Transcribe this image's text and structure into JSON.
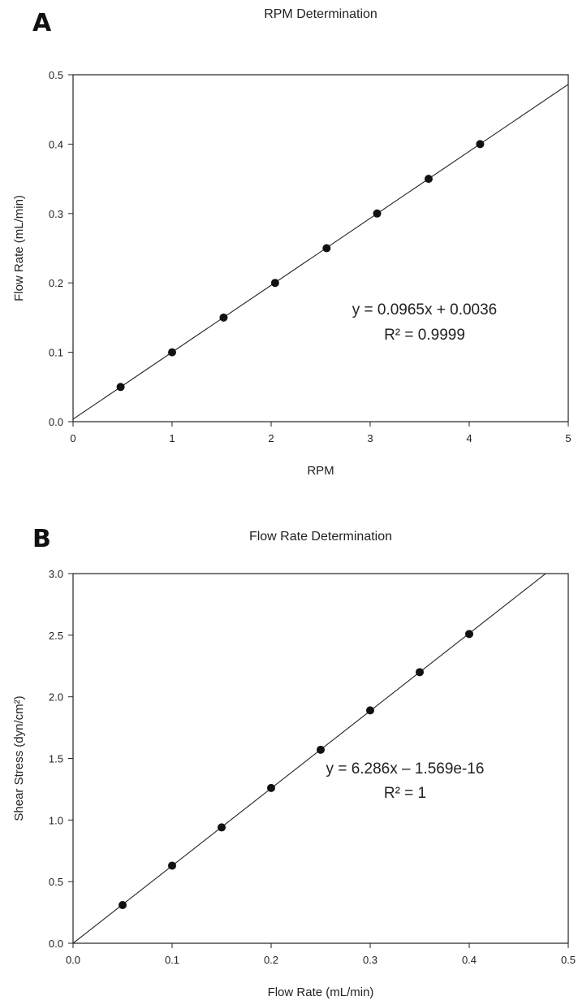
{
  "panels": [
    {
      "letter": "A"
    },
    {
      "letter": "B"
    }
  ],
  "chart_data": [
    {
      "type": "scatter",
      "title": "RPM Determination",
      "xlabel": "RPM",
      "ylabel": "Flow Rate (mL/min)",
      "xlim": [
        0,
        5
      ],
      "ylim": [
        0,
        0.5
      ],
      "xticks": [
        0,
        1,
        2,
        3,
        4,
        5
      ],
      "yticks": [
        0.0,
        0.1,
        0.2,
        0.3,
        0.4,
        0.5
      ],
      "xtick_labels": [
        "0",
        "1",
        "2",
        "3",
        "4",
        "5"
      ],
      "ytick_labels": [
        "0.0",
        "0.1",
        "0.2",
        "0.3",
        "0.4",
        "0.5"
      ],
      "x": [
        0.48,
        1.0,
        1.52,
        2.04,
        2.56,
        3.07,
        3.59,
        4.11
      ],
      "y": [
        0.05,
        0.1,
        0.15,
        0.2,
        0.25,
        0.3,
        0.35,
        0.4
      ],
      "trendline": {
        "slope": 0.0965,
        "intercept": 0.0036
      },
      "annotation_lines": [
        "y = 0.0965x + 0.0036",
        "R² = 0.9999"
      ],
      "grid": false
    },
    {
      "type": "scatter",
      "title": "Flow Rate Determination",
      "xlabel": "Flow Rate (mL/min)",
      "ylabel": "Shear Stress (dyn/cm²)",
      "xlim": [
        0,
        0.5
      ],
      "ylim": [
        0,
        3.0
      ],
      "xticks": [
        0.0,
        0.1,
        0.2,
        0.3,
        0.4,
        0.5
      ],
      "yticks": [
        0.0,
        0.5,
        1.0,
        1.5,
        2.0,
        2.5,
        3.0
      ],
      "xtick_labels": [
        "0.0",
        "0.1",
        "0.2",
        "0.3",
        "0.4",
        "0.5"
      ],
      "ytick_labels": [
        "0.0",
        "0.5",
        "1.0",
        "1.5",
        "2.0",
        "2.5",
        "3.0"
      ],
      "x": [
        0.05,
        0.1,
        0.15,
        0.2,
        0.25,
        0.3,
        0.35,
        0.4
      ],
      "y": [
        0.31,
        0.63,
        0.94,
        1.26,
        1.57,
        1.89,
        2.2,
        2.51
      ],
      "trendline": {
        "slope": 6.286,
        "intercept": 0
      },
      "annotation_lines": [
        "y = 6.286x – 1.569e-16",
        "R² = 1"
      ],
      "grid": false
    }
  ]
}
